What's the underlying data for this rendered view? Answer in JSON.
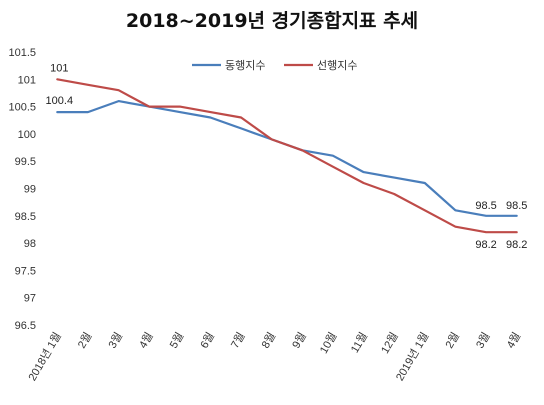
{
  "chart_data": {
    "type": "line",
    "title": "2018~2019년 경기종합지표 추세",
    "categories": [
      "2018년 1월",
      "2월",
      "3월",
      "4월",
      "5월",
      "6월",
      "7월",
      "8월",
      "9월",
      "10월",
      "11월",
      "12월",
      "2019년 1월",
      "2월",
      "3월",
      "4월"
    ],
    "category_colors": [
      "#333333",
      "#333333",
      "#333333",
      "#333333",
      "#333333",
      "#888888",
      "#333333",
      "#888888",
      "#333333",
      "#333333",
      "#333333",
      "#333333",
      "#333333",
      "#333333",
      "#333333",
      "#333333"
    ],
    "ylim": [
      96.5,
      101.5
    ],
    "yticks": [
      96.5,
      97,
      97.5,
      98,
      98.5,
      99,
      99.5,
      100,
      100.5,
      101,
      101.5
    ],
    "ytick_labels": [
      "96.5",
      "97",
      "97.5",
      "98",
      "98.5",
      "99",
      "99.5",
      "100",
      "100.5",
      "101",
      "101.5"
    ],
    "grid": false,
    "legend": "top-center",
    "series": [
      {
        "name": "동행지수",
        "color": "#4a7ebb",
        "values": [
          100.4,
          100.4,
          100.6,
          100.5,
          100.4,
          100.3,
          100.1,
          99.9,
          99.7,
          99.6,
          99.3,
          99.2,
          99.1,
          98.6,
          98.5,
          98.5
        ]
      },
      {
        "name": "선행지수",
        "color": "#be4b48",
        "values": [
          101.0,
          100.9,
          100.8,
          100.5,
          100.5,
          100.4,
          100.3,
          99.9,
          99.7,
          99.4,
          99.1,
          98.9,
          98.6,
          98.3,
          98.2,
          98.2
        ]
      }
    ],
    "data_labels": [
      {
        "series": 0,
        "index": 0,
        "text": "100.4"
      },
      {
        "series": 1,
        "index": 0,
        "text": "101"
      },
      {
        "series": 0,
        "index": 14,
        "text": "98.5"
      },
      {
        "series": 0,
        "index": 15,
        "text": "98.5"
      },
      {
        "series": 1,
        "index": 14,
        "text": "98.2"
      },
      {
        "series": 1,
        "index": 15,
        "text": "98.2"
      }
    ]
  }
}
